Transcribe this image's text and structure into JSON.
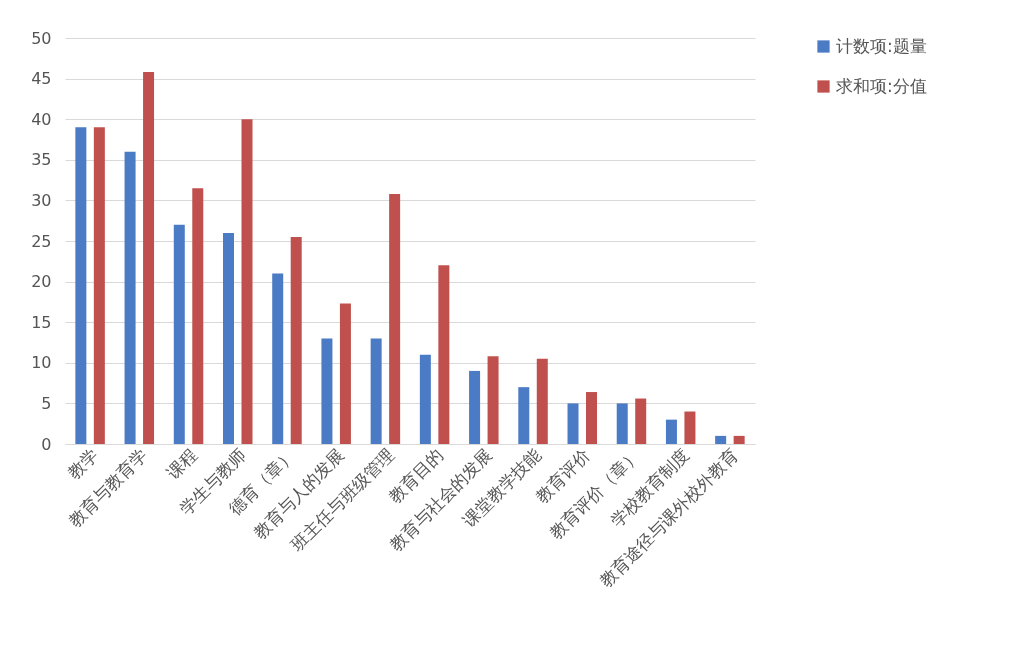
{
  "chart_data": {
    "type": "bar",
    "categories": [
      "教学",
      "教育与教育学",
      "课程",
      "学生与教师",
      "德育（章）",
      "教育与人的发展",
      "班主任与班级管理",
      "教育目的",
      "教育与社会的发展",
      "课堂教学技能",
      "教育评价",
      "教育评价（章）",
      "学校教育制度",
      "教育途径与课外校外教育"
    ],
    "series": [
      {
        "name": "计数项:题量",
        "color": "#4a7bc4",
        "values": [
          39,
          36,
          27,
          26,
          21,
          13,
          13,
          11,
          9,
          7,
          5,
          5,
          3,
          1
        ]
      },
      {
        "name": "求和项:分值",
        "color": "#c0504d",
        "values": [
          39,
          45.8,
          31.5,
          40,
          25.5,
          17.3,
          30.8,
          22,
          10.8,
          10.5,
          6.4,
          5.6,
          4,
          1
        ]
      }
    ],
    "ylim": [
      0,
      50
    ],
    "yticks": [
      0,
      5,
      10,
      15,
      20,
      25,
      30,
      35,
      40,
      45,
      50
    ],
    "grid": "y",
    "legend": "right"
  }
}
